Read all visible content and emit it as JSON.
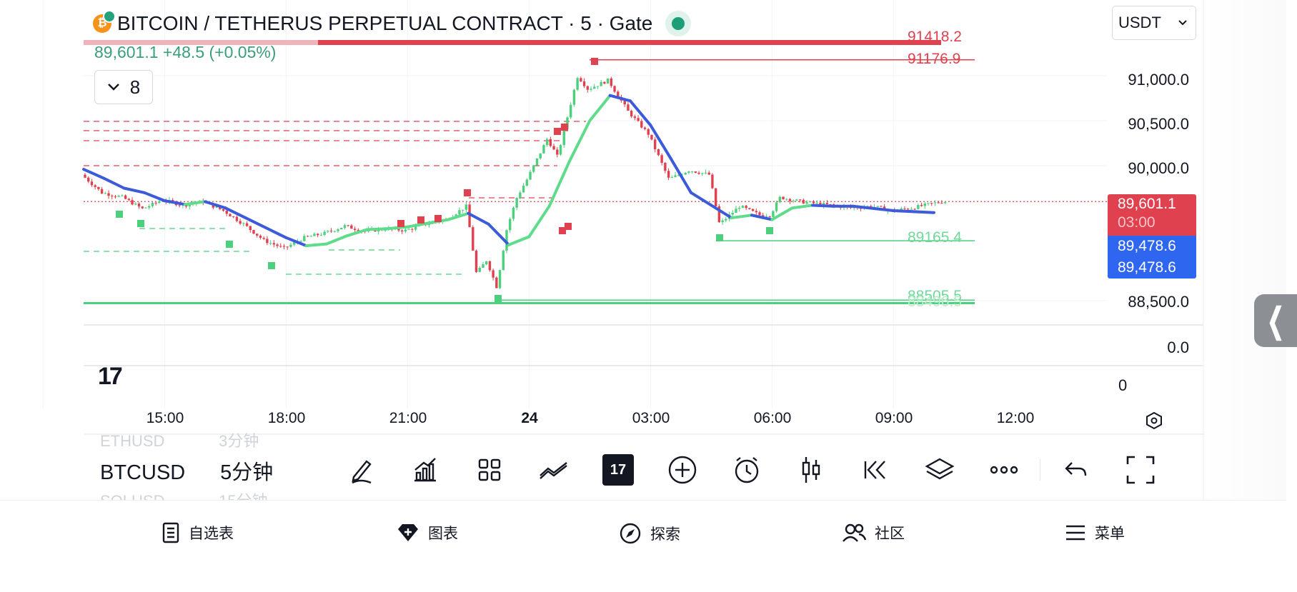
{
  "header": {
    "title": "BITCOIN / TETHERUS PERPETUAL CONTRACT · 5 · Gate",
    "price_change": "89,601.1  +48.5 (+0.05%)",
    "indicator_count": "8",
    "currency": "USDT"
  },
  "price_axis": {
    "labels": [
      "91,000.0",
      "90,500.0",
      "90,000.0",
      "88,500.0"
    ],
    "indicator_labels": [
      "0.0",
      "0"
    ]
  },
  "price_tags": {
    "last_price": "89,601.1",
    "countdown": "03:00",
    "ma_value_1": "89,478.6",
    "ma_value_2": "89,478.6"
  },
  "levels": {
    "resistance_1": "91418.2",
    "resistance_2": "91176.9",
    "support_1": "89165.4",
    "support_2": "88505.5",
    "support_3": "88496.5"
  },
  "time_axis": [
    "15:00",
    "18:00",
    "21:00",
    "24",
    "03:00",
    "06:00",
    "09:00",
    "12:00"
  ],
  "symbol_wheel": {
    "above": {
      "symbol": "ETHUSD",
      "interval": "3分钟"
    },
    "current": {
      "symbol": "BTCUSD",
      "interval": "5分钟"
    },
    "below": {
      "symbol": "SOLUSD",
      "interval": "15分钟"
    }
  },
  "toolbar": {
    "tools": [
      "draw-icon",
      "indicators-icon",
      "layout-grid-icon",
      "compare-icon",
      "tradingview-icon",
      "add-icon",
      "alert-icon",
      "candle-icon",
      "replay-icon",
      "layers-icon",
      "more-icon",
      "undo-icon",
      "fullscreen-icon"
    ],
    "active_badge": "17"
  },
  "bottom_nav": [
    {
      "label": "自选表",
      "icon": "watchlist-icon"
    },
    {
      "label": "图表",
      "icon": "chart-gem-icon"
    },
    {
      "label": "探索",
      "icon": "explore-icon"
    },
    {
      "label": "社区",
      "icon": "community-icon"
    },
    {
      "label": "菜单",
      "icon": "menu-icon"
    }
  ],
  "colors": {
    "bull": "#4cd07d",
    "bear": "#e0414f",
    "ma_up": "#5fdc8b",
    "ma_down": "#3b5bdb",
    "accent": "#2f66ef"
  },
  "chart_data": {
    "type": "candlestick",
    "interval_minutes": 5,
    "y_axis_ticks": [
      88500,
      90000,
      90500,
      91000
    ],
    "ylim": [
      88270,
      91650
    ],
    "x_ticks": [
      "15:00",
      "18:00",
      "21:00",
      "24",
      "03:00",
      "06:00",
      "09:00",
      "12:00"
    ],
    "close_path": [
      [
        "13:00",
        89900
      ],
      [
        "13:30",
        89700
      ],
      [
        "14:00",
        89650
      ],
      [
        "14:30",
        89520
      ],
      [
        "15:00",
        89620
      ],
      [
        "15:30",
        89560
      ],
      [
        "16:00",
        89600
      ],
      [
        "16:30",
        89500
      ],
      [
        "17:00",
        89350
      ],
      [
        "17:30",
        89170
      ],
      [
        "18:00",
        89080
      ],
      [
        "18:30",
        89200
      ],
      [
        "19:00",
        89250
      ],
      [
        "19:30",
        89330
      ],
      [
        "20:00",
        89270
      ],
      [
        "20:30",
        89300
      ],
      [
        "21:00",
        89280
      ],
      [
        "21:30",
        89350
      ],
      [
        "22:00",
        89400
      ],
      [
        "22:30",
        89550
      ],
      [
        "22:45",
        88800
      ],
      [
        "23:00",
        88950
      ],
      [
        "23:15",
        88650
      ],
      [
        "23:30",
        89300
      ],
      [
        "23:45",
        89650
      ],
      [
        "24:00",
        89850
      ],
      [
        "24:30",
        90300
      ],
      [
        "00:45",
        90100
      ],
      [
        "01:15",
        91000
      ],
      [
        "01:30",
        90850
      ],
      [
        "02:00",
        90950
      ],
      [
        "02:30",
        90600
      ],
      [
        "03:00",
        90350
      ],
      [
        "03:30",
        89850
      ],
      [
        "04:00",
        89950
      ],
      [
        "04:30",
        89900
      ],
      [
        "04:45",
        89350
      ],
      [
        "05:15",
        89550
      ],
      [
        "05:45",
        89450
      ],
      [
        "06:00",
        89450
      ],
      [
        "06:15",
        89650
      ],
      [
        "06:45",
        89600
      ],
      [
        "07:30",
        89560
      ],
      [
        "08:00",
        89530
      ],
      [
        "08:30",
        89550
      ],
      [
        "09:00",
        89500
      ],
      [
        "09:30",
        89530
      ],
      [
        "10:15",
        89601.1
      ]
    ],
    "moving_average": {
      "last": 89478.6,
      "points": [
        [
          "13:00",
          89960
        ],
        [
          "13:30",
          89860
        ],
        [
          "14:00",
          89750
        ],
        [
          "14:30",
          89700
        ],
        [
          "15:00",
          89610
        ],
        [
          "15:30",
          89570
        ],
        [
          "16:00",
          89600
        ],
        [
          "16:30",
          89530
        ],
        [
          "17:00",
          89420
        ],
        [
          "17:30",
          89310
        ],
        [
          "18:00",
          89200
        ],
        [
          "18:30",
          89110
        ],
        [
          "19:00",
          89130
        ],
        [
          "19:30",
          89220
        ],
        [
          "20:00",
          89290
        ],
        [
          "20:30",
          89300
        ],
        [
          "21:00",
          89320
        ],
        [
          "21:30",
          89360
        ],
        [
          "22:00",
          89400
        ],
        [
          "22:30",
          89470
        ],
        [
          "23:00",
          89350
        ],
        [
          "23:30",
          89120
        ],
        [
          "24:00",
          89210
        ],
        [
          "24:30",
          89550
        ],
        [
          "01:00",
          90050
        ],
        [
          "01:30",
          90500
        ],
        [
          "02:00",
          90780
        ],
        [
          "02:30",
          90720
        ],
        [
          "03:00",
          90450
        ],
        [
          "03:30",
          90080
        ],
        [
          "04:00",
          89700
        ],
        [
          "04:30",
          89560
        ],
        [
          "05:00",
          89420
        ],
        [
          "05:30",
          89450
        ],
        [
          "06:00",
          89400
        ],
        [
          "06:30",
          89530
        ],
        [
          "07:00",
          89560
        ],
        [
          "07:30",
          89550
        ],
        [
          "08:00",
          89550
        ],
        [
          "09:00",
          89500
        ],
        [
          "10:00",
          89478.6
        ]
      ]
    },
    "last_price": 89601.1,
    "horizontal_levels": [
      91418.2,
      91176.9,
      89165.4,
      88505.5,
      88496.5
    ]
  }
}
